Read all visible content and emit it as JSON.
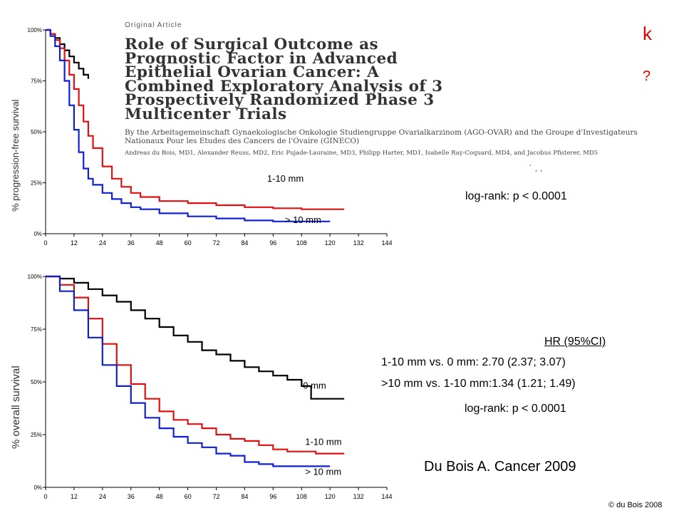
{
  "article": {
    "kind": "Original Article",
    "title_lines": [
      "Role of Surgical Outcome as",
      "Prognostic Factor in Advanced",
      "Epithelial Ovarian Cancer: A",
      "Combined Exploratory Analysis of 3",
      "Prospectively Randomized Phase 3",
      "Multicenter Trials"
    ],
    "byline": "By the Arbeitsgemeinschaft Gynaekologische Onkologie Studiengruppe Ovarialkarzinom (AGO-OVAR) and the Groupe d'Investigateurs Nationaux Pour les Etudes des Cancers de l'Ovaire (GINECO)",
    "authors": "Andreas du Bois, MD1, Alexander Reuss, MD2, Eric Pujade-Lauraine, MD3, Philipp Harter, MD1, Isabelle Ray-Coquard, MD4, and Jacobus Pfisterer, MD5"
  },
  "corner_marks": [
    "k",
    "?"
  ],
  "pfs_logrank": "log-rank: p < 0.0001",
  "os_hr_header": "HR   (95%CI)",
  "os_hr_rows": [
    "1-10 mm vs. 0 mm:   2.70 (2.37; 3.07)",
    ">10 mm vs. 1-10 mm:1.34 (1.21; 1.49)"
  ],
  "os_logrank": "log-rank: p < 0.0001",
  "citation": "Du Bois A. Cancer 2009",
  "copyright": "© du Bois 2008",
  "colors": {
    "0 mm": "#000000",
    "1-10 mm": "#dd1111",
    "> 10 mm": "#1020d0"
  },
  "chart_data": [
    {
      "type": "line",
      "step": true,
      "ylabel": "% progression-free survival",
      "xlabel": "",
      "xlim": [
        0,
        144
      ],
      "ylim": [
        0,
        100
      ],
      "xticks": [
        0,
        12,
        24,
        36,
        48,
        60,
        72,
        84,
        96,
        108,
        120,
        132,
        144
      ],
      "yticks": [
        0,
        25,
        50,
        75,
        100
      ],
      "ytick_labels": [
        "0%",
        "25%",
        "50%",
        "75%",
        "100%"
      ],
      "series": [
        {
          "name": "0 mm",
          "visible_range": [
            0,
            18
          ],
          "x": [
            0,
            2,
            4,
            6,
            8,
            10,
            12,
            14,
            16,
            18
          ],
          "y": [
            100,
            98,
            96,
            93,
            90,
            87,
            84,
            81,
            78,
            76
          ]
        },
        {
          "name": "1-10 mm",
          "x": [
            0,
            2,
            4,
            6,
            8,
            10,
            12,
            14,
            16,
            18,
            20,
            24,
            28,
            32,
            36,
            40,
            48,
            60,
            72,
            84,
            96,
            108,
            120,
            126
          ],
          "y": [
            100,
            98,
            95,
            91,
            85,
            78,
            71,
            63,
            55,
            48,
            42,
            33,
            27,
            23,
            20,
            18,
            16,
            15,
            14,
            13,
            12.5,
            12,
            12,
            12
          ]
        },
        {
          "name": "> 10 mm",
          "x": [
            0,
            2,
            4,
            6,
            8,
            10,
            12,
            14,
            16,
            18,
            20,
            24,
            28,
            32,
            36,
            40,
            48,
            60,
            72,
            84,
            96,
            108,
            120
          ],
          "y": [
            100,
            97,
            92,
            85,
            75,
            63,
            51,
            40,
            32,
            27,
            24,
            20,
            17,
            15,
            13,
            12,
            10,
            8.5,
            7.5,
            6.5,
            6,
            6,
            6
          ]
        }
      ],
      "hidden_x_range_for_0mm_and_1_10mm": [
        18,
        24
      ],
      "series_labels": [
        "1-10 mm",
        "> 10 mm"
      ]
    },
    {
      "type": "line",
      "step": true,
      "ylabel": "% overall survival",
      "xlabel": "",
      "xlim": [
        0,
        144
      ],
      "ylim": [
        0,
        100
      ],
      "xticks": [
        0,
        12,
        24,
        36,
        48,
        60,
        72,
        84,
        96,
        108,
        120,
        132,
        144
      ],
      "yticks": [
        0,
        25,
        50,
        75,
        100
      ],
      "ytick_labels": [
        "0%",
        "25%",
        "50%",
        "75%",
        "100%"
      ],
      "series": [
        {
          "name": "0 mm",
          "x": [
            0,
            6,
            12,
            18,
            24,
            30,
            36,
            42,
            48,
            54,
            60,
            66,
            72,
            78,
            84,
            90,
            96,
            102,
            108,
            112,
            120,
            126
          ],
          "y": [
            100,
            99,
            97,
            94,
            91,
            88,
            84,
            80,
            76,
            72,
            69,
            65,
            63,
            60,
            57,
            55,
            53,
            51,
            48,
            42,
            42,
            42
          ]
        },
        {
          "name": "1-10 mm",
          "x": [
            0,
            6,
            12,
            18,
            24,
            30,
            36,
            42,
            48,
            54,
            60,
            66,
            72,
            78,
            84,
            90,
            96,
            102,
            108,
            114,
            120,
            126
          ],
          "y": [
            100,
            96,
            90,
            80,
            68,
            58,
            49,
            42,
            36,
            32,
            30,
            28,
            25,
            23,
            22,
            20,
            18,
            17,
            17,
            16,
            16,
            16
          ]
        },
        {
          "name": "> 10 mm",
          "x": [
            0,
            6,
            12,
            18,
            24,
            30,
            36,
            42,
            48,
            54,
            60,
            66,
            72,
            78,
            84,
            90,
            96,
            102,
            108,
            114,
            120
          ],
          "y": [
            100,
            93,
            84,
            71,
            58,
            48,
            40,
            33,
            28,
            24,
            21,
            19,
            16,
            15,
            12,
            11,
            10,
            10,
            10,
            10,
            10
          ]
        }
      ],
      "series_labels": [
        "0 mm",
        "1-10 mm",
        "> 10 mm"
      ]
    }
  ]
}
